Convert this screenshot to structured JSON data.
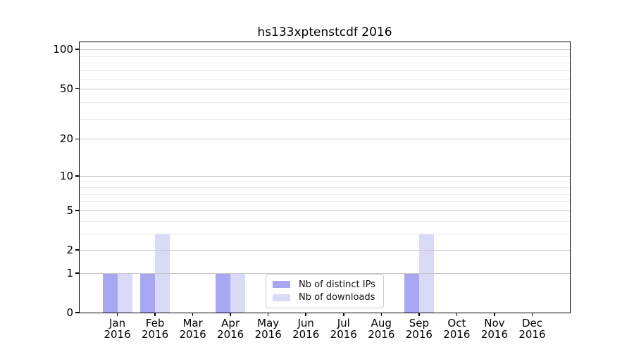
{
  "title": "hs133xptenstcdf 2016",
  "colors": {
    "distinct_ips": "#a8a8f2",
    "downloads": "#d9d9f8",
    "grid_major": "#c9c9c9",
    "grid_minor": "#e9e9e9",
    "spine": "#000000",
    "legend_border": "#cccccc"
  },
  "legend": {
    "items": [
      {
        "label": "Nb of distinct IPs",
        "color_key": "distinct_ips"
      },
      {
        "label": "Nb of downloads",
        "color_key": "downloads"
      }
    ]
  },
  "axes": {
    "y_tick_labels": [
      "0",
      "1",
      "2",
      "5",
      "10",
      "20",
      "50",
      "100"
    ],
    "x_tick_months": [
      "Jan",
      "Feb",
      "Mar",
      "Apr",
      "May",
      "Jun",
      "Jul",
      "Aug",
      "Sep",
      "Oct",
      "Nov",
      "Dec"
    ],
    "x_tick_year": "2016"
  },
  "chart_data": {
    "type": "bar",
    "title": "hs133xptenstcdf 2016",
    "x_categories": [
      "Jan 2016",
      "Feb 2016",
      "Mar 2016",
      "Apr 2016",
      "May 2016",
      "Jun 2016",
      "Jul 2016",
      "Aug 2016",
      "Sep 2016",
      "Oct 2016",
      "Nov 2016",
      "Dec 2016"
    ],
    "series": [
      {
        "name": "Nb of distinct IPs",
        "color_key": "distinct_ips",
        "values": [
          1,
          1,
          0,
          1,
          0,
          0,
          0,
          0,
          1,
          0,
          0,
          0
        ]
      },
      {
        "name": "Nb of downloads",
        "color_key": "downloads",
        "values": [
          1,
          3,
          0,
          1,
          0,
          0,
          0,
          0,
          3,
          0,
          0,
          0
        ]
      }
    ],
    "y_scale": "log1p",
    "y_major_ticks": [
      0,
      1,
      2,
      5,
      10,
      20,
      50,
      100
    ],
    "y_minor_ticks": [
      3,
      4,
      6,
      7,
      8,
      9,
      29,
      39,
      59,
      69,
      79,
      89
    ],
    "ylim": [
      0,
      114
    ],
    "grid": true,
    "legend_position": "lower center"
  }
}
